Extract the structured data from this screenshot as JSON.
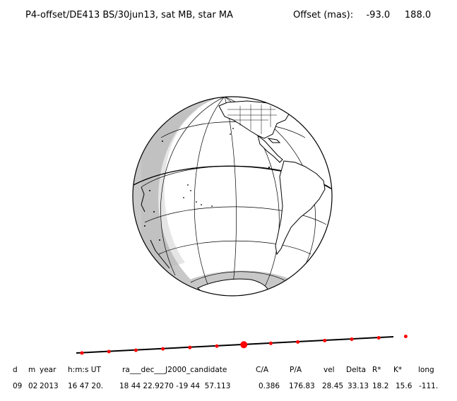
{
  "header": {
    "title": "P4-offset/DE413 BS/30jun13, sat MB, star MA",
    "offset_label": "Offset (mas):",
    "offset_values": [
      "-93.0",
      "188.0"
    ]
  },
  "track": {
    "dot_count": 13,
    "highlight_index": 6,
    "dot_color": "#ff0000",
    "line_color": "#000000"
  },
  "globe": {
    "shade_color": "#c8c8c8",
    "outline_color": "#000000"
  },
  "table": {
    "headers": [
      "d",
      "m",
      "year",
      "h:m:s UT",
      "ra___dec___J2000_candidate",
      "C/A",
      "P/A",
      "vel",
      "Delta",
      "R*",
      "K*",
      "long"
    ],
    "values": [
      "09",
      "02",
      "2013",
      "16 47 20.",
      "18 44 22.9270 -19 44  57.113",
      "0.386",
      "176.83",
      "28.45",
      "33.13",
      "18.2",
      "15.6",
      "-111."
    ]
  }
}
